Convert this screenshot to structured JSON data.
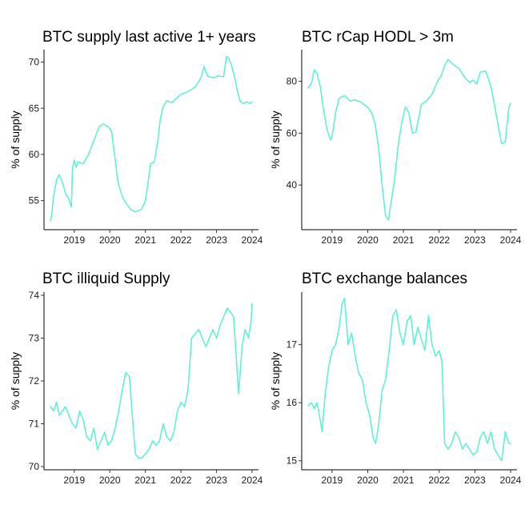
{
  "line_color": "#5ff0d7",
  "chart_data": [
    {
      "type": "line",
      "title": "BTC supply last active 1+ years",
      "ylabel": "% of supply",
      "xlabel": "",
      "xlim": [
        2018.33,
        2024.0
      ],
      "ylim": [
        52.2,
        71.0
      ],
      "x_ticks": [
        2019,
        2020,
        2021,
        2022,
        2023,
        2024
      ],
      "x_tick_labels": [
        "2019",
        "2020",
        "2021",
        "2022",
        "2023",
        "2024"
      ],
      "y_ticks": [
        55,
        60,
        65,
        70
      ],
      "y_tick_labels": [
        "55",
        "60",
        "65",
        "70"
      ],
      "grid": false,
      "series": [
        {
          "x": [
            2018.33,
            2018.36,
            2018.42,
            2018.5,
            2018.58,
            2018.67,
            2018.75,
            2018.83,
            2018.92,
            2018.95,
            2019.0,
            2019.06,
            2019.1,
            2019.25,
            2019.4,
            2019.55,
            2019.7,
            2019.82,
            2019.95,
            2020.05,
            2020.15,
            2020.22,
            2020.3,
            2020.38,
            2020.5,
            2020.6,
            2020.7,
            2020.8,
            2020.9,
            2021.0,
            2021.15,
            2021.25,
            2021.35,
            2021.42,
            2021.5,
            2021.6,
            2021.75,
            2021.85,
            2022.0,
            2022.2,
            2022.4,
            2022.55,
            2022.65,
            2022.75,
            2022.9,
            2023.05,
            2023.2,
            2023.28,
            2023.33,
            2023.42,
            2023.5,
            2023.58,
            2023.66,
            2023.75,
            2023.85,
            2023.95,
            2024.0
          ],
          "y": [
            52.8,
            53.3,
            55.5,
            57.2,
            57.8,
            57.0,
            55.8,
            55.3,
            54.3,
            58.5,
            59.4,
            58.6,
            59.2,
            59.0,
            60.0,
            61.5,
            63.0,
            63.3,
            63.0,
            62.5,
            59.5,
            57.2,
            56.0,
            55.2,
            54.5,
            54.0,
            53.8,
            53.9,
            54.1,
            55.0,
            59.0,
            59.2,
            61.5,
            63.8,
            65.2,
            65.8,
            65.6,
            66.0,
            66.5,
            66.8,
            67.3,
            68.2,
            69.5,
            68.5,
            68.3,
            68.5,
            68.4,
            70.6,
            70.5,
            69.7,
            68.5,
            67.0,
            65.8,
            65.5,
            65.7,
            65.5,
            65.7
          ]
        }
      ]
    },
    {
      "type": "line",
      "title": "BTC rCap HODL > 3m",
      "ylabel": "% of supply",
      "xlabel": "",
      "xlim": [
        2018.33,
        2024.0
      ],
      "ylim": [
        24.0,
        91.0
      ],
      "x_ticks": [
        2019,
        2020,
        2021,
        2022,
        2023,
        2024
      ],
      "x_tick_labels": [
        "2019",
        "2020",
        "2021",
        "2022",
        "2023",
        "2024"
      ],
      "y_ticks": [
        40,
        60,
        80
      ],
      "y_tick_labels": [
        "40",
        "60",
        "80"
      ],
      "grid": false,
      "series": [
        {
          "x": [
            2018.33,
            2018.42,
            2018.5,
            2018.58,
            2018.67,
            2018.75,
            2018.85,
            2018.95,
            2019.0,
            2019.1,
            2019.2,
            2019.35,
            2019.5,
            2019.65,
            2019.8,
            2019.9,
            2020.0,
            2020.1,
            2020.2,
            2020.3,
            2020.4,
            2020.5,
            2020.58,
            2020.66,
            2020.75,
            2020.85,
            2020.95,
            2021.05,
            2021.15,
            2021.25,
            2021.35,
            2021.5,
            2021.65,
            2021.8,
            2021.95,
            2022.05,
            2022.15,
            2022.25,
            2022.35,
            2022.45,
            2022.55,
            2022.65,
            2022.75,
            2022.85,
            2022.95,
            2023.05,
            2023.15,
            2023.3,
            2023.45,
            2023.55,
            2023.65,
            2023.75,
            2023.85,
            2023.95,
            2024.0
          ],
          "y": [
            77.5,
            79.0,
            84.5,
            83.0,
            78.0,
            70.0,
            62.0,
            57.5,
            58.5,
            68.0,
            73.5,
            74.5,
            72.5,
            72.8,
            72.0,
            71.0,
            70.0,
            68.0,
            64.0,
            55.0,
            40.0,
            28.0,
            26.5,
            34.0,
            42.0,
            55.0,
            64.0,
            70.0,
            68.0,
            60.0,
            60.5,
            71.0,
            72.5,
            75.0,
            80.0,
            82.0,
            86.0,
            88.5,
            87.0,
            86.0,
            85.0,
            83.0,
            81.0,
            79.5,
            80.5,
            79.0,
            83.5,
            84.0,
            78.0,
            71.0,
            63.0,
            56.0,
            56.5,
            70.0,
            71.5
          ]
        }
      ]
    },
    {
      "type": "line",
      "title": "BTC illiquid Supply",
      "ylabel": "% of supply",
      "xlabel": "",
      "xlim": [
        2018.33,
        2024.0
      ],
      "ylim": [
        70.0,
        74.0
      ],
      "x_ticks": [
        2019,
        2020,
        2021,
        2022,
        2023,
        2024
      ],
      "x_tick_labels": [
        "2019",
        "2020",
        "2021",
        "2022",
        "2023",
        "2024"
      ],
      "y_ticks": [
        70,
        71,
        72,
        73,
        74
      ],
      "y_tick_labels": [
        "70",
        "71",
        "72",
        "73",
        "74"
      ],
      "grid": false,
      "series": [
        {
          "x": [
            2018.33,
            2018.42,
            2018.5,
            2018.58,
            2018.67,
            2018.75,
            2018.85,
            2018.95,
            2019.05,
            2019.15,
            2019.25,
            2019.35,
            2019.45,
            2019.55,
            2019.65,
            2019.75,
            2019.85,
            2019.95,
            2020.05,
            2020.15,
            2020.25,
            2020.35,
            2020.45,
            2020.55,
            2020.65,
            2020.72,
            2020.8,
            2020.9,
            2021.0,
            2021.1,
            2021.2,
            2021.3,
            2021.4,
            2021.5,
            2021.6,
            2021.7,
            2021.8,
            2021.9,
            2022.0,
            2022.1,
            2022.2,
            2022.3,
            2022.4,
            2022.5,
            2022.6,
            2022.7,
            2022.8,
            2022.9,
            2023.0,
            2023.1,
            2023.2,
            2023.3,
            2023.4,
            2023.48,
            2023.55,
            2023.62,
            2023.72,
            2023.8,
            2023.9,
            2023.97,
            2024.0
          ],
          "y": [
            71.4,
            71.3,
            71.5,
            71.2,
            71.3,
            71.4,
            71.2,
            71.0,
            70.9,
            71.3,
            71.1,
            70.7,
            70.6,
            70.9,
            70.4,
            70.6,
            70.8,
            70.5,
            70.6,
            70.9,
            71.3,
            71.8,
            72.2,
            72.1,
            71.0,
            70.3,
            70.2,
            70.2,
            70.3,
            70.4,
            70.6,
            70.5,
            70.6,
            71.0,
            70.7,
            70.6,
            70.8,
            71.3,
            71.5,
            71.4,
            71.8,
            73.0,
            73.1,
            73.2,
            73.0,
            72.8,
            73.0,
            73.2,
            73.0,
            73.3,
            73.5,
            73.7,
            73.6,
            73.5,
            72.6,
            71.7,
            72.8,
            73.2,
            73.0,
            73.4,
            73.8
          ]
        }
      ]
    },
    {
      "type": "line",
      "title": "BTC exchange balances",
      "ylabel": "% of supply",
      "xlabel": "",
      "xlim": [
        2018.33,
        2024.0
      ],
      "ylim": [
        14.9,
        17.85
      ],
      "x_ticks": [
        2019,
        2020,
        2021,
        2022,
        2023,
        2024
      ],
      "x_tick_labels": [
        "2019",
        "2020",
        "2021",
        "2022",
        "2023",
        "2024"
      ],
      "y_ticks": [
        15,
        16,
        17
      ],
      "y_tick_labels": [
        "15",
        "16",
        "17"
      ],
      "grid": false,
      "series": [
        {
          "x": [
            2018.33,
            2018.42,
            2018.5,
            2018.58,
            2018.67,
            2018.72,
            2018.8,
            2018.9,
            2019.0,
            2019.1,
            2019.2,
            2019.28,
            2019.35,
            2019.45,
            2019.55,
            2019.65,
            2019.75,
            2019.85,
            2019.95,
            2020.05,
            2020.15,
            2020.22,
            2020.3,
            2020.4,
            2020.5,
            2020.6,
            2020.7,
            2020.8,
            2020.9,
            2021.0,
            2021.1,
            2021.2,
            2021.3,
            2021.4,
            2021.5,
            2021.6,
            2021.7,
            2021.8,
            2021.9,
            2022.0,
            2022.08,
            2022.15,
            2022.25,
            2022.35,
            2022.45,
            2022.55,
            2022.65,
            2022.75,
            2022.85,
            2022.95,
            2023.05,
            2023.15,
            2023.25,
            2023.35,
            2023.45,
            2023.55,
            2023.65,
            2023.75,
            2023.85,
            2023.95,
            2024.0
          ],
          "y": [
            15.95,
            16.0,
            15.9,
            16.0,
            15.7,
            15.5,
            16.1,
            16.6,
            16.9,
            17.0,
            17.3,
            17.7,
            17.8,
            17.0,
            17.2,
            16.8,
            16.5,
            16.4,
            16.0,
            15.8,
            15.4,
            15.3,
            15.6,
            16.2,
            16.4,
            16.9,
            17.5,
            17.6,
            17.2,
            17.0,
            17.4,
            17.5,
            17.0,
            17.3,
            17.1,
            16.9,
            17.5,
            17.0,
            16.8,
            16.9,
            16.7,
            15.3,
            15.2,
            15.3,
            15.5,
            15.4,
            15.2,
            15.3,
            15.2,
            15.1,
            15.15,
            15.4,
            15.5,
            15.3,
            15.5,
            15.2,
            15.1,
            15.0,
            15.5,
            15.3,
            15.3
          ]
        }
      ]
    }
  ]
}
